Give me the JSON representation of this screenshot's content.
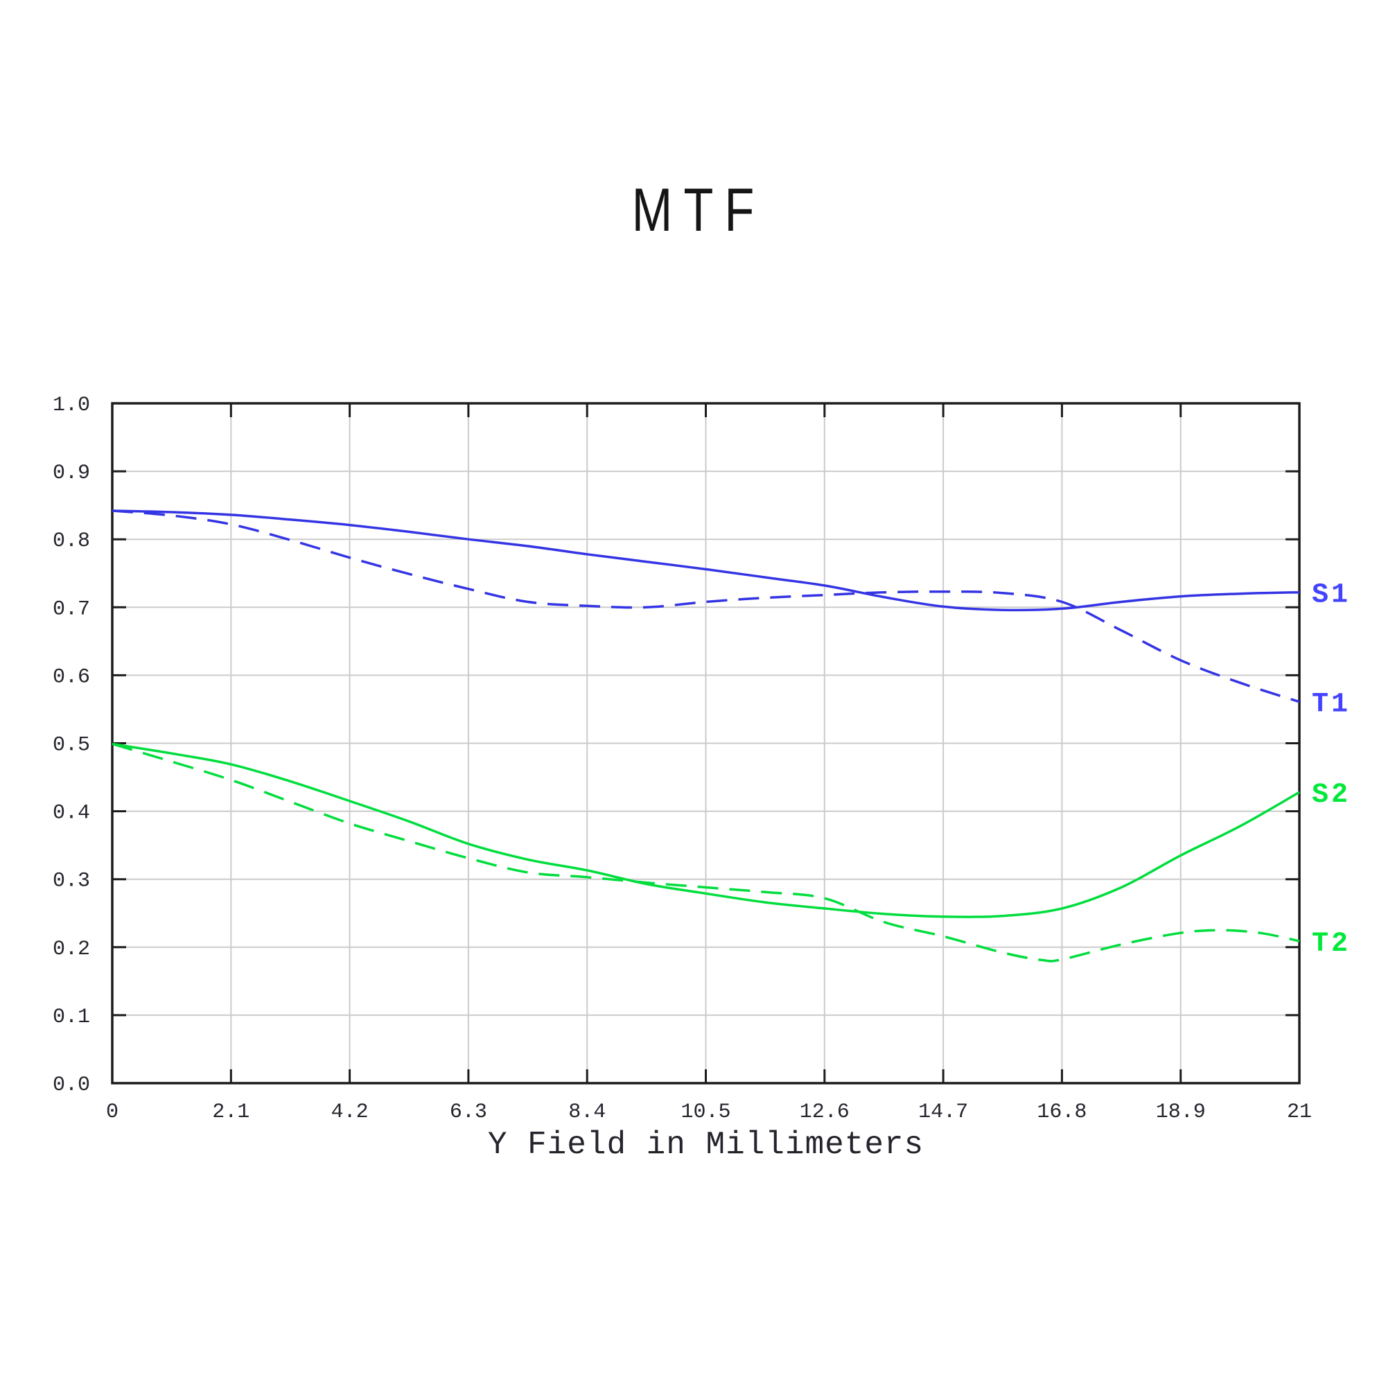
{
  "chart_data": {
    "type": "line",
    "title": "MTF",
    "xlabel": "Y Field in Millimeters",
    "xlim": [
      0,
      21
    ],
    "ylim": [
      0,
      1
    ],
    "grid": true,
    "legend_position": "labels-at-right-curve-ends",
    "x_tick_labels": [
      "0",
      "2.1",
      "4.2",
      "6.3",
      "8.4",
      "10.5",
      "12.6",
      "14.7",
      "16.8",
      "18.9",
      "21"
    ],
    "y_tick_labels": [
      "0.0",
      "0.1",
      "0.2",
      "0.3",
      "0.4",
      "0.5",
      "0.6",
      "0.7",
      "0.8",
      "0.9",
      "1.0"
    ],
    "colors": {
      "frame": "#1c1c1c",
      "grid": "#cbcbcb",
      "tick_text": "#24242c",
      "title_text": "#151515",
      "blue_curve": "#3434e4",
      "green_curve": "#00dd3d",
      "blue_label": "#4343ff",
      "green_label": "#00e83a"
    },
    "series": [
      {
        "name": "S1",
        "style": "solid",
        "color_key": "blue_curve",
        "label_color_key": "blue_label",
        "points": [
          [
            0,
            0.842
          ],
          [
            1.05,
            0.84
          ],
          [
            2.1,
            0.836
          ],
          [
            3.15,
            0.829
          ],
          [
            4.2,
            0.821
          ],
          [
            5.25,
            0.811
          ],
          [
            6.3,
            0.8
          ],
          [
            7.35,
            0.79
          ],
          [
            8.4,
            0.778
          ],
          [
            9.45,
            0.767
          ],
          [
            10.5,
            0.756
          ],
          [
            11.55,
            0.744
          ],
          [
            12.6,
            0.732
          ],
          [
            13.65,
            0.715
          ],
          [
            14.7,
            0.701
          ],
          [
            15.75,
            0.696
          ],
          [
            16.8,
            0.698
          ],
          [
            17.85,
            0.708
          ],
          [
            18.9,
            0.716
          ],
          [
            19.95,
            0.72
          ],
          [
            21,
            0.722
          ]
        ]
      },
      {
        "name": "T1",
        "style": "dashed",
        "color_key": "blue_curve",
        "label_color_key": "blue_label",
        "points": [
          [
            0,
            0.842
          ],
          [
            1.05,
            0.835
          ],
          [
            2.1,
            0.822
          ],
          [
            3.15,
            0.799
          ],
          [
            4.2,
            0.773
          ],
          [
            5.25,
            0.749
          ],
          [
            6.3,
            0.727
          ],
          [
            7.35,
            0.708
          ],
          [
            8.4,
            0.702
          ],
          [
            9.45,
            0.7
          ],
          [
            10.5,
            0.708
          ],
          [
            11.55,
            0.714
          ],
          [
            12.6,
            0.718
          ],
          [
            13.65,
            0.722
          ],
          [
            14.7,
            0.723
          ],
          [
            15.75,
            0.721
          ],
          [
            16.8,
            0.708
          ],
          [
            17.85,
            0.666
          ],
          [
            18.9,
            0.622
          ],
          [
            19.95,
            0.589
          ],
          [
            21,
            0.561
          ]
        ]
      },
      {
        "name": "S2",
        "style": "solid",
        "color_key": "green_curve",
        "label_color_key": "green_label",
        "points": [
          [
            0,
            0.499
          ],
          [
            1.05,
            0.485
          ],
          [
            2.1,
            0.469
          ],
          [
            3.15,
            0.444
          ],
          [
            4.2,
            0.415
          ],
          [
            5.25,
            0.385
          ],
          [
            6.3,
            0.352
          ],
          [
            7.35,
            0.329
          ],
          [
            8.4,
            0.313
          ],
          [
            9.45,
            0.293
          ],
          [
            10.5,
            0.279
          ],
          [
            11.55,
            0.266
          ],
          [
            12.6,
            0.257
          ],
          [
            13.65,
            0.249
          ],
          [
            14.7,
            0.245
          ],
          [
            15.75,
            0.246
          ],
          [
            16.8,
            0.257
          ],
          [
            17.85,
            0.288
          ],
          [
            18.9,
            0.335
          ],
          [
            19.95,
            0.378
          ],
          [
            21,
            0.428
          ]
        ]
      },
      {
        "name": "T2",
        "style": "dashed",
        "color_key": "green_curve",
        "label_color_key": "green_label",
        "points": [
          [
            0,
            0.499
          ],
          [
            1.05,
            0.473
          ],
          [
            2.1,
            0.446
          ],
          [
            3.15,
            0.414
          ],
          [
            4.2,
            0.382
          ],
          [
            5.25,
            0.356
          ],
          [
            6.3,
            0.331
          ],
          [
            7.35,
            0.31
          ],
          [
            8.4,
            0.303
          ],
          [
            9.45,
            0.295
          ],
          [
            10.5,
            0.288
          ],
          [
            11.55,
            0.281
          ],
          [
            12.6,
            0.272
          ],
          [
            13.65,
            0.237
          ],
          [
            14.7,
            0.216
          ],
          [
            15.75,
            0.192
          ],
          [
            16.45,
            0.181
          ],
          [
            16.8,
            0.182
          ],
          [
            17.85,
            0.204
          ],
          [
            18.9,
            0.221
          ],
          [
            19.6,
            0.225
          ],
          [
            20.3,
            0.221
          ],
          [
            21,
            0.209
          ]
        ]
      }
    ]
  }
}
